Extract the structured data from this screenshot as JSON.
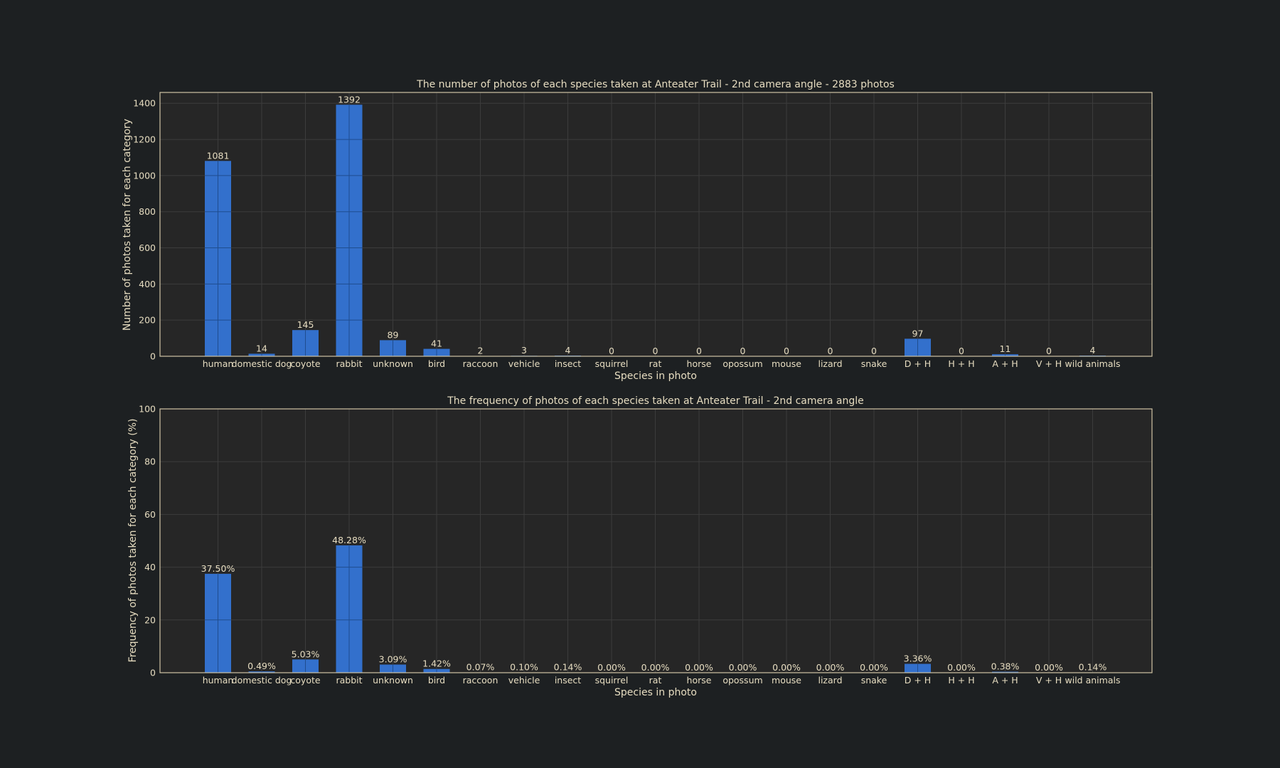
{
  "chart_data": [
    {
      "type": "bar",
      "title": "The number of photos of each species taken at Anteater Trail - 2nd camera angle - 2883 photos",
      "xlabel": "Species in photo",
      "ylabel": "Number of photos taken for each category",
      "ylim": [
        0,
        1460
      ],
      "yticks": [
        "0",
        "200",
        "400",
        "600",
        "800",
        "1000",
        "1200",
        "1400"
      ],
      "categories": [
        "human",
        "domestic dog",
        "coyote",
        "rabbit",
        "unknown",
        "bird",
        "raccoon",
        "vehicle",
        "insect",
        "squirrel",
        "rat",
        "horse",
        "opossum",
        "mouse",
        "lizard",
        "snake",
        "D + H",
        "H + H",
        "A + H",
        "V + H",
        "wild animals"
      ],
      "values": [
        1081,
        14,
        145,
        1392,
        89,
        41,
        2,
        3,
        4,
        0,
        0,
        0,
        0,
        0,
        0,
        0,
        97,
        0,
        11,
        0,
        4
      ],
      "data_labels": [
        "1081",
        "14",
        "145",
        "1392",
        "89",
        "41",
        "2",
        "3",
        "4",
        "0",
        "0",
        "0",
        "0",
        "0",
        "0",
        "0",
        "97",
        "0",
        "11",
        "0",
        "4"
      ],
      "grid": true,
      "bar_color": "#3370cc"
    },
    {
      "type": "bar",
      "title": "The frequency of photos of each species taken at Anteater Trail - 2nd camera angle",
      "xlabel": "Species in photo",
      "ylabel": "Frequency of photos taken for each category (%)",
      "ylim": [
        0,
        100
      ],
      "yticks": [
        "0",
        "20",
        "40",
        "60",
        "80",
        "100"
      ],
      "categories": [
        "human",
        "domestic dog",
        "coyote",
        "rabbit",
        "unknown",
        "bird",
        "raccoon",
        "vehicle",
        "insect",
        "squirrel",
        "rat",
        "horse",
        "opossum",
        "mouse",
        "lizard",
        "snake",
        "D + H",
        "H + H",
        "A + H",
        "V + H",
        "wild animals"
      ],
      "values": [
        37.5,
        0.49,
        5.03,
        48.28,
        3.09,
        1.42,
        0.07,
        0.1,
        0.14,
        0,
        0,
        0,
        0,
        0,
        0,
        0,
        3.36,
        0,
        0.38,
        0,
        0.14
      ],
      "data_labels": [
        "37.50%",
        "0.49%",
        "5.03%",
        "48.28%",
        "3.09%",
        "1.42%",
        "0.07%",
        "0.10%",
        "0.14%",
        "0.00%",
        "0.00%",
        "0.00%",
        "0.00%",
        "0.00%",
        "0.00%",
        "0.00%",
        "3.36%",
        "0.00%",
        "0.38%",
        "0.00%",
        "0.14%"
      ],
      "grid": true,
      "bar_color": "#3370cc"
    }
  ]
}
